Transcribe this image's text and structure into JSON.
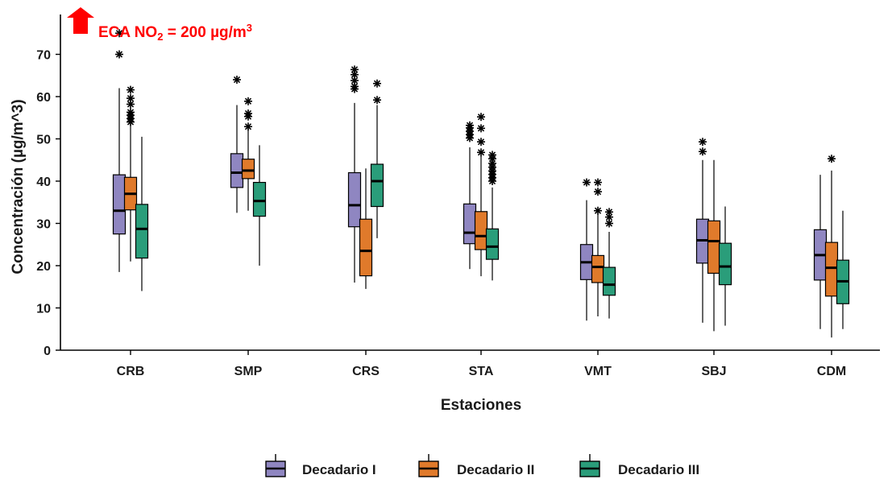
{
  "chart_data": {
    "type": "boxplot",
    "title": "",
    "xlabel": "Estaciones",
    "ylabel": "Concentración (µg/m^3)",
    "ylim": [
      0,
      75
    ],
    "yticks": [
      0,
      10,
      20,
      30,
      40,
      50,
      60,
      70
    ],
    "categories": [
      "CRB",
      "SMP",
      "CRS",
      "STA",
      "VMT",
      "SBJ",
      "CDM"
    ],
    "legend_position": "bottom",
    "grid": false,
    "annotation": {
      "text_main": "ECA NO",
      "text_sub": "2",
      "text_rest": " = 200 µg/m",
      "text_sup": "3",
      "color": "#ff0000"
    },
    "series": [
      {
        "name": "Decadario I",
        "color": "#8f86c1",
        "boxes": [
          {
            "min": 18.5,
            "q1": 27.5,
            "median": 33.0,
            "q3": 41.5,
            "max": 62.0,
            "outliers": [
              70.0,
              75.0
            ]
          },
          {
            "min": 32.5,
            "q1": 38.5,
            "median": 42.0,
            "q3": 46.5,
            "max": 58.0,
            "outliers": [
              64.0
            ]
          },
          {
            "min": 16.0,
            "q1": 29.2,
            "median": 34.3,
            "q3": 42.0,
            "max": 58.5,
            "outliers": [
              61.8,
              62.4,
              63.8,
              65.2,
              66.4
            ]
          },
          {
            "min": 19.2,
            "q1": 25.2,
            "median": 27.8,
            "q3": 34.6,
            "max": 48.0,
            "outliers": [
              50.2,
              51.0,
              51.8,
              52.6,
              53.2
            ]
          },
          {
            "min": 7.0,
            "q1": 16.7,
            "median": 20.8,
            "q3": 25.0,
            "max": 35.5,
            "outliers": [
              39.7
            ]
          },
          {
            "min": 6.5,
            "q1": 20.6,
            "median": 26.0,
            "q3": 31.0,
            "max": 45.0,
            "outliers": [
              47.0,
              49.3
            ]
          },
          {
            "min": 5.0,
            "q1": 16.6,
            "median": 22.5,
            "q3": 28.5,
            "max": 41.5,
            "outliers": []
          }
        ]
      },
      {
        "name": "Decadario II",
        "color": "#e07a2b",
        "boxes": [
          {
            "min": 21.0,
            "q1": 33.2,
            "median": 37.0,
            "q3": 40.9,
            "max": 54.0,
            "outliers": [
              54.0,
              54.8,
              55.6,
              56.3,
              58.2,
              59.6,
              61.6
            ]
          },
          {
            "min": 33.0,
            "q1": 40.6,
            "median": 42.5,
            "q3": 45.2,
            "max": 52.5,
            "outliers": [
              52.9,
              55.3,
              56.0,
              58.9
            ]
          },
          {
            "min": 14.5,
            "q1": 17.6,
            "median": 23.5,
            "q3": 31.0,
            "max": 43.0,
            "outliers": []
          },
          {
            "min": 17.5,
            "q1": 23.8,
            "median": 27.0,
            "q3": 32.8,
            "max": 46.0,
            "outliers": [
              46.8,
              49.3,
              52.5,
              55.2
            ]
          },
          {
            "min": 8.0,
            "q1": 16.0,
            "median": 19.7,
            "q3": 22.4,
            "max": 32.5,
            "outliers": [
              33.0,
              37.5,
              39.7
            ]
          },
          {
            "min": 4.5,
            "q1": 18.2,
            "median": 25.8,
            "q3": 30.6,
            "max": 45.0,
            "outliers": []
          },
          {
            "min": 3.0,
            "q1": 12.8,
            "median": 19.5,
            "q3": 25.5,
            "max": 42.5,
            "outliers": [
              45.3
            ]
          }
        ]
      },
      {
        "name": "Decadario III",
        "color": "#2a9d7a",
        "boxes": [
          {
            "min": 14.0,
            "q1": 21.8,
            "median": 28.7,
            "q3": 34.5,
            "max": 50.5,
            "outliers": []
          },
          {
            "min": 20.0,
            "q1": 31.7,
            "median": 35.3,
            "q3": 39.7,
            "max": 48.5,
            "outliers": []
          },
          {
            "min": 26.5,
            "q1": 34.0,
            "median": 40.0,
            "q3": 44.0,
            "max": 58.0,
            "outliers": [
              59.2,
              63.1
            ]
          },
          {
            "min": 16.5,
            "q1": 21.5,
            "median": 24.5,
            "q3": 28.7,
            "max": 38.5,
            "outliers": [
              40.0,
              40.8,
              41.6,
              42.4,
              43.3,
              44.2,
              45.3,
              46.2
            ]
          },
          {
            "min": 7.5,
            "q1": 13.0,
            "median": 15.5,
            "q3": 19.6,
            "max": 28.0,
            "outliers": [
              30.0,
              31.5,
              32.7
            ]
          },
          {
            "min": 5.8,
            "q1": 15.5,
            "median": 19.8,
            "q3": 25.3,
            "max": 34.0,
            "outliers": []
          },
          {
            "min": 5.0,
            "q1": 11.0,
            "median": 16.3,
            "q3": 21.3,
            "max": 33.0,
            "outliers": []
          }
        ]
      }
    ]
  }
}
